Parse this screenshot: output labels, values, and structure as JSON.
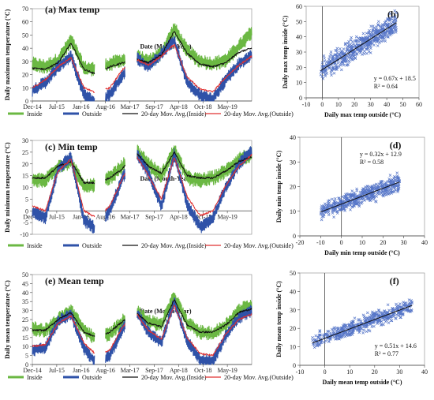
{
  "chart_data": [
    {
      "panel": "a",
      "type": "line",
      "title": "(a) Max temp",
      "xlabel": "Date (Month-Year)",
      "ylabel": "Daily maximum temperature (°C)",
      "x_ticks": [
        "Dec-14",
        "Jul-15",
        "Jan-16",
        "Aug-16",
        "Mar-17",
        "Sep-17",
        "Apr-18",
        "Oct-18",
        "May-19"
      ],
      "ylim": [
        0,
        70
      ],
      "y_ticks": [
        0,
        10,
        20,
        30,
        40,
        50,
        60,
        70
      ],
      "segments": [
        [
          0,
          2.55
        ],
        [
          3,
          3.8
        ],
        [
          4.3,
          9
        ]
      ],
      "series": [
        {
          "name": "Inside",
          "color": "#6bb843",
          "values": [
            28,
            26,
            31,
            46,
            25,
            24,
            28,
            31,
            34,
            30,
            36,
            55,
            38,
            30,
            28,
            31,
            41,
            52
          ]
        },
        {
          "name": "Outside",
          "color": "#2f52a8",
          "values": [
            8,
            14,
            26,
            34,
            5,
            -2,
            5,
            20,
            33,
            26,
            36,
            46,
            14,
            4,
            2,
            16,
            28,
            35
          ]
        },
        {
          "name": "20-day Mov. Avg.(Inside)",
          "color": "#111111",
          "values": [
            25,
            24,
            29,
            44,
            24,
            20,
            26,
            29,
            32,
            29,
            35,
            53,
            36,
            28,
            26,
            29,
            37,
            40
          ]
        },
        {
          "name": "20-day Mov. Avg.(Outside)",
          "color": "#e03030",
          "values": [
            10,
            16,
            26,
            33,
            10,
            6,
            10,
            24,
            32,
            27,
            34,
            43,
            18,
            9,
            7,
            18,
            27,
            34
          ]
        }
      ]
    },
    {
      "panel": "b",
      "type": "scatter",
      "xlabel": "Daily max temp outside (°C)",
      "ylabel": "Daily max temp inside (°C)",
      "xlim": [
        -10,
        60
      ],
      "ylim": [
        0,
        60
      ],
      "x_ticks": [
        -10,
        0,
        10,
        20,
        30,
        40,
        50,
        60
      ],
      "y_ticks": [
        0,
        10,
        20,
        30,
        40,
        50,
        60
      ],
      "equation": "y = 0.67x + 18.5",
      "r2": "R² = 0.64",
      "slope": 0.67,
      "intercept": 18.5,
      "x_range": [
        -1,
        46
      ],
      "noise": 6,
      "color": "#3a5fbf"
    },
    {
      "panel": "c",
      "type": "line",
      "title": "(c) Min temp",
      "xlabel": "Date (Month-Year)",
      "ylabel": "Daily minimum temperature (°C)",
      "x_ticks": [
        "Dec-14",
        "Jul-15",
        "Jan-16",
        "Aug-16",
        "Mar-17",
        "Sep-17",
        "Apr-18",
        "Oct-18",
        "May-19"
      ],
      "ylim": [
        -10,
        30
      ],
      "y_ticks": [
        -10,
        -5,
        0,
        5,
        10,
        15,
        20,
        25,
        30
      ],
      "segments": [
        [
          0,
          2.55
        ],
        [
          3,
          3.8
        ],
        [
          4.3,
          9
        ]
      ],
      "series": [
        {
          "name": "Inside",
          "color": "#6bb843",
          "values": [
            13,
            13,
            19,
            21,
            10,
            11,
            14,
            19,
            26,
            20,
            15,
            26,
            14,
            13,
            14,
            17,
            22,
            24
          ]
        },
        {
          "name": "Outside",
          "color": "#2f52a8",
          "values": [
            0,
            -3,
            18,
            23,
            -4,
            -8,
            0,
            14,
            25,
            16,
            2,
            24,
            3,
            -7,
            -3,
            10,
            20,
            26
          ]
        },
        {
          "name": "20-day Mov. Avg.(Inside)",
          "color": "#111111",
          "values": [
            14,
            14,
            19,
            21,
            12,
            12,
            14,
            18,
            25,
            19,
            16,
            25,
            15,
            14,
            14,
            17,
            21,
            23
          ]
        },
        {
          "name": "20-day Mov. Avg.(Outside)",
          "color": "#e03030",
          "values": [
            2,
            0,
            17,
            22,
            0,
            -3,
            2,
            14,
            24,
            15,
            5,
            23,
            6,
            -2,
            0,
            11,
            19,
            24
          ]
        }
      ]
    },
    {
      "panel": "d",
      "type": "scatter",
      "xlabel": "Daily min temp outside (°C)",
      "ylabel": "Daily min temp inside (°C)",
      "xlim": [
        -20,
        40
      ],
      "ylim": [
        0,
        40
      ],
      "x_ticks": [
        -20,
        -10,
        0,
        10,
        20,
        30,
        40
      ],
      "y_ticks": [
        0,
        10,
        20,
        30,
        40
      ],
      "equation": "y = 0.32x + 12.9",
      "r2": "R² = 0.58",
      "slope": 0.32,
      "intercept": 12.9,
      "x_range": [
        -10,
        28
      ],
      "noise": 3,
      "color": "#3a5fbf"
    },
    {
      "panel": "e",
      "type": "line",
      "title": "(e) Mean temp",
      "xlabel": "Date (Month-Year)",
      "ylabel": "Daily mean temperature (°C)",
      "x_ticks": [
        "Dec-14",
        "Jul-15",
        "Jan-16",
        "Aug-16",
        "Mar-17",
        "Sep-17",
        "Apr-18",
        "Oct-18",
        "May-19"
      ],
      "ylim": [
        0,
        50
      ],
      "y_ticks": [
        0,
        5,
        10,
        15,
        20,
        25,
        30,
        35,
        40,
        45,
        50
      ],
      "segments": [
        [
          0,
          2.55
        ],
        [
          3,
          3.8
        ],
        [
          4.3,
          9
        ]
      ],
      "series": [
        {
          "name": "Inside",
          "color": "#6bb843",
          "values": [
            20,
            19,
            25,
            30,
            19,
            14,
            17,
            24,
            30,
            24,
            22,
            38,
            23,
            18,
            17,
            22,
            30,
            33
          ]
        },
        {
          "name": "Outside",
          "color": "#2f52a8",
          "values": [
            8,
            9,
            24,
            28,
            9,
            0,
            5,
            20,
            30,
            18,
            12,
            35,
            13,
            3,
            2,
            16,
            26,
            30
          ]
        },
        {
          "name": "20-day Mov. Avg.(Inside)",
          "color": "#111111",
          "values": [
            19,
            19,
            25,
            29,
            18,
            15,
            18,
            24,
            29,
            23,
            21,
            36,
            22,
            18,
            18,
            22,
            29,
            31
          ]
        },
        {
          "name": "20-day Mov. Avg.(Outside)",
          "color": "#e03030",
          "values": [
            10,
            11,
            23,
            27,
            12,
            5,
            8,
            21,
            29,
            19,
            14,
            33,
            15,
            6,
            5,
            17,
            25,
            28
          ]
        }
      ]
    },
    {
      "panel": "f",
      "type": "scatter",
      "xlabel": "Daily mean temp outside (°C)",
      "ylabel": "Daily mean temp inside (°C)",
      "xlim": [
        -10,
        40
      ],
      "ylim": [
        0,
        50
      ],
      "x_ticks": [
        -10,
        0,
        10,
        20,
        30,
        40
      ],
      "y_ticks": [
        0,
        10,
        20,
        30,
        40,
        50
      ],
      "equation": "y = 0.51x + 14.6",
      "r2": "R² = 0.77",
      "slope": 0.51,
      "intercept": 14.6,
      "x_range": [
        -5,
        35
      ],
      "noise": 3.5,
      "color": "#3a5fbf"
    }
  ],
  "legend": {
    "inside": "Inside",
    "outside": "Outside",
    "mov_inside": "20-day Mov. Avg.(Inside)",
    "mov_outside": "20-day Mov. Avg.(Outside)"
  },
  "colors": {
    "inside": "#6bb843",
    "outside": "#2f52a8",
    "mov_inside": "#111111",
    "mov_outside": "#e03030",
    "scatter": "#3a5fbf"
  }
}
